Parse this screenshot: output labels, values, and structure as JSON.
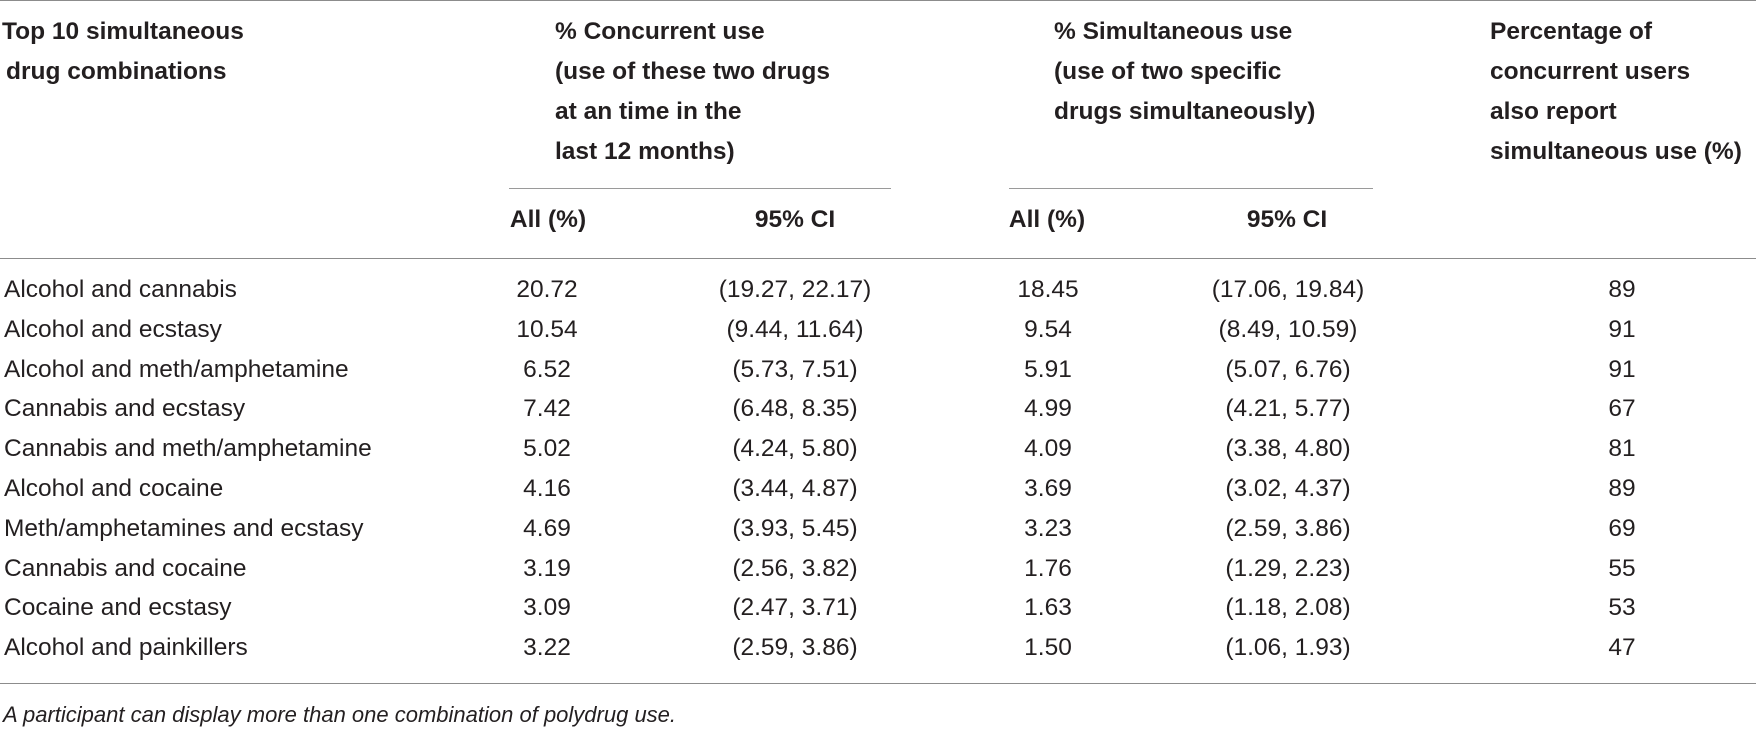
{
  "table": {
    "headers": {
      "combination": [
        "Top 10 simultaneous",
        "drug combinations"
      ],
      "concurrent": [
        "% Concurrent use",
        "(use of these two drugs",
        "at an time in the",
        "last 12 months)"
      ],
      "simultaneous": [
        "% Simultaneous use",
        "(use of two specific",
        "drugs simultaneously)"
      ],
      "percentage": [
        "Percentage of",
        "concurrent users",
        "also report",
        "simultaneous use (%)"
      ]
    },
    "subheaders": {
      "concurrent_all": "All (%)",
      "concurrent_ci": "95% CI",
      "simultaneous_all": "All (%)",
      "simultaneous_ci": "95% CI"
    },
    "rows": [
      {
        "label": "Alcohol and cannabis",
        "conc_all": "20.72",
        "conc_ci": "(19.27, 22.17)",
        "sim_all": "18.45",
        "sim_ci": "(17.06, 19.84)",
        "pct": "89"
      },
      {
        "label": "Alcohol and ecstasy",
        "conc_all": "10.54",
        "conc_ci": "(9.44, 11.64)",
        "sim_all": "9.54",
        "sim_ci": "(8.49, 10.59)",
        "pct": "91"
      },
      {
        "label": "Alcohol and meth/amphetamine",
        "conc_all": "6.52",
        "conc_ci": "(5.73, 7.51)",
        "sim_all": "5.91",
        "sim_ci": "(5.07, 6.76)",
        "pct": "91"
      },
      {
        "label": "Cannabis and ecstasy",
        "conc_all": "7.42",
        "conc_ci": "(6.48, 8.35)",
        "sim_all": "4.99",
        "sim_ci": "(4.21, 5.77)",
        "pct": "67"
      },
      {
        "label": "Cannabis and meth/amphetamine",
        "conc_all": "5.02",
        "conc_ci": "(4.24, 5.80)",
        "sim_all": "4.09",
        "sim_ci": "(3.38, 4.80)",
        "pct": "81"
      },
      {
        "label": "Alcohol and cocaine",
        "conc_all": "4.16",
        "conc_ci": "(3.44, 4.87)",
        "sim_all": "3.69",
        "sim_ci": "(3.02, 4.37)",
        "pct": "89"
      },
      {
        "label": "Meth/amphetamines and ecstasy",
        "conc_all": "4.69",
        "conc_ci": "(3.93, 5.45)",
        "sim_all": "3.23",
        "sim_ci": "(2.59, 3.86)",
        "pct": "69"
      },
      {
        "label": "Cannabis and cocaine",
        "conc_all": "3.19",
        "conc_ci": "(2.56, 3.82)",
        "sim_all": "1.76",
        "sim_ci": "(1.29, 2.23)",
        "pct": "55"
      },
      {
        "label": "Cocaine and ecstasy",
        "conc_all": "3.09",
        "conc_ci": "(2.47, 3.71)",
        "sim_all": "1.63",
        "sim_ci": "(1.18, 2.08)",
        "pct": "53"
      },
      {
        "label": "Alcohol and painkillers",
        "conc_all": "3.22",
        "conc_ci": "(2.59, 3.86)",
        "sim_all": "1.50",
        "sim_ci": "(1.06, 1.93)",
        "pct": "47"
      }
    ],
    "footnote": "A participant can display more than one combination of polydrug use."
  }
}
